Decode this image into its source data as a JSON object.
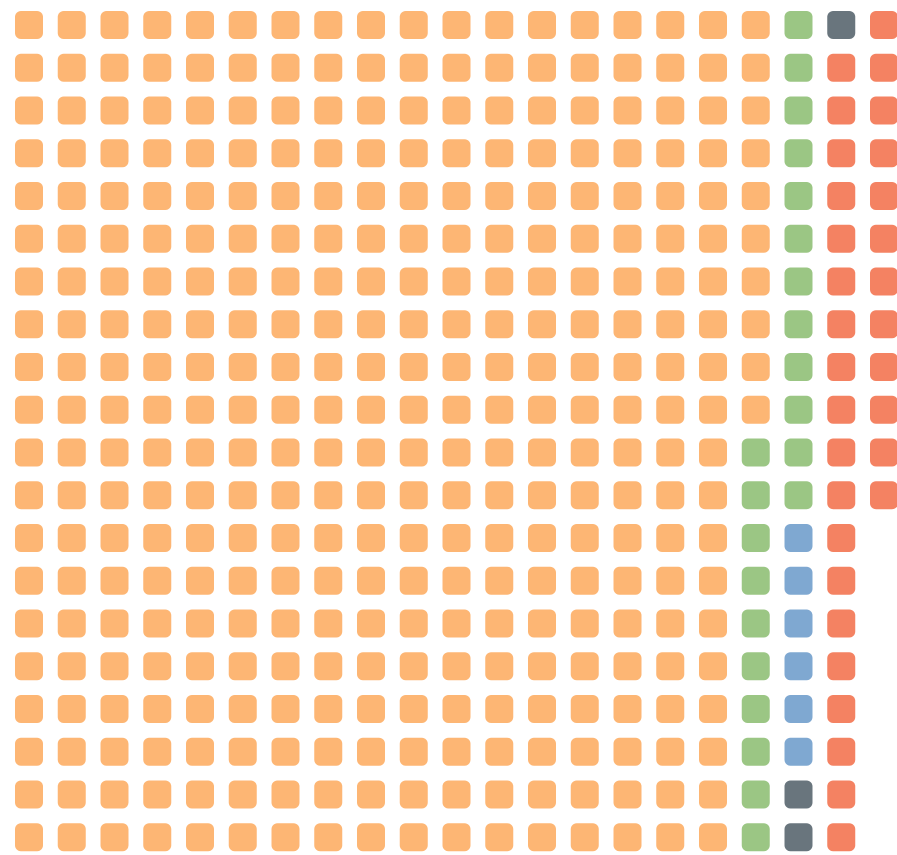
{
  "chart_data": {
    "type": "waffle",
    "values": [
      350,
      22,
      6,
      3,
      31
    ],
    "colors": [
      "#fdb674",
      "#9bc684",
      "#7fa8d1",
      "#69757d",
      "#f48262"
    ]
  }
}
